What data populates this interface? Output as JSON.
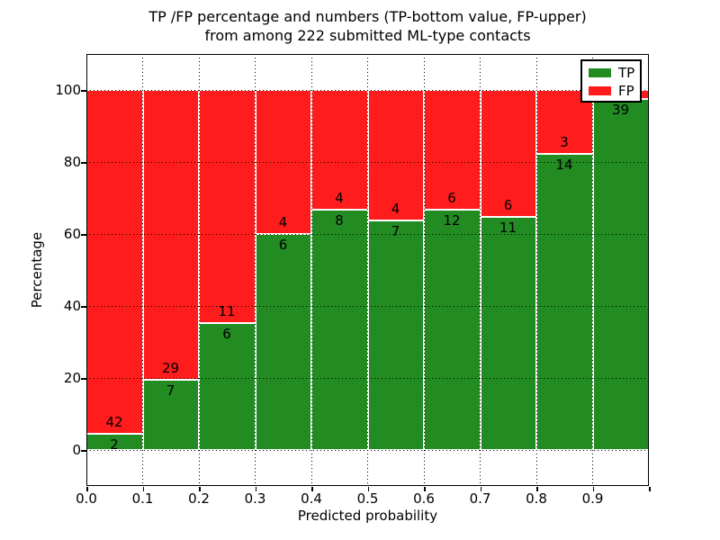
{
  "title": {
    "line1": "TP /FP percentage and numbers (TP-bottom value, FP-upper)",
    "line2": "from among 222 submitted ML-type contacts"
  },
  "axes": {
    "xlabel": "Predicted probability",
    "ylabel": "Percentage",
    "xtick_labels": [
      "0.0",
      "0.1",
      "0.2",
      "0.3",
      "0.4",
      "0.5",
      "0.6",
      "0.7",
      "0.8",
      "0.9"
    ],
    "ytick_labels": [
      "0",
      "20",
      "40",
      "60",
      "80",
      "100"
    ]
  },
  "legend": {
    "items": [
      {
        "label": "TP",
        "color": "#228b22"
      },
      {
        "label": "FP",
        "color": "#ff1c1c"
      }
    ]
  },
  "chart_data": {
    "type": "bar",
    "stacked": true,
    "normalized": "each bin scaled to 100%",
    "title": "TP /FP percentage and numbers (TP-bottom value, FP-upper) from among 222 submitted ML-type contacts",
    "xlabel": "Predicted probability",
    "ylabel": "Percentage",
    "total_contacts": 222,
    "bin_edges": [
      0.0,
      0.1,
      0.2,
      0.3,
      0.4,
      0.5,
      0.6,
      0.7,
      0.8,
      0.9,
      1.0
    ],
    "series": [
      {
        "name": "TP",
        "color": "#228b22",
        "counts": [
          2,
          7,
          6,
          6,
          8,
          7,
          12,
          11,
          14,
          39
        ]
      },
      {
        "name": "FP",
        "color": "#ff1c1c",
        "counts": [
          42,
          29,
          11,
          4,
          4,
          4,
          6,
          6,
          3,
          1
        ]
      }
    ],
    "tp_percent": [
      4.5,
      19.4,
      35.3,
      60.0,
      66.7,
      63.6,
      66.7,
      64.7,
      82.4,
      97.5
    ],
    "visible_bar_labels": {
      "fp": [
        "42",
        "29",
        "11",
        "4",
        "4",
        "4",
        "6",
        "6",
        "3"
      ],
      "tp": [
        "2",
        "7",
        "6",
        "6",
        "8",
        "7",
        "12",
        "11",
        "14",
        "39"
      ],
      "note_last_fp_label": "hidden behind legend"
    },
    "xlim": [
      0.0,
      1.0
    ],
    "ylim": [
      -10,
      110
    ],
    "grid": true,
    "grid_style": "dotted",
    "legend_position": "upper right"
  }
}
